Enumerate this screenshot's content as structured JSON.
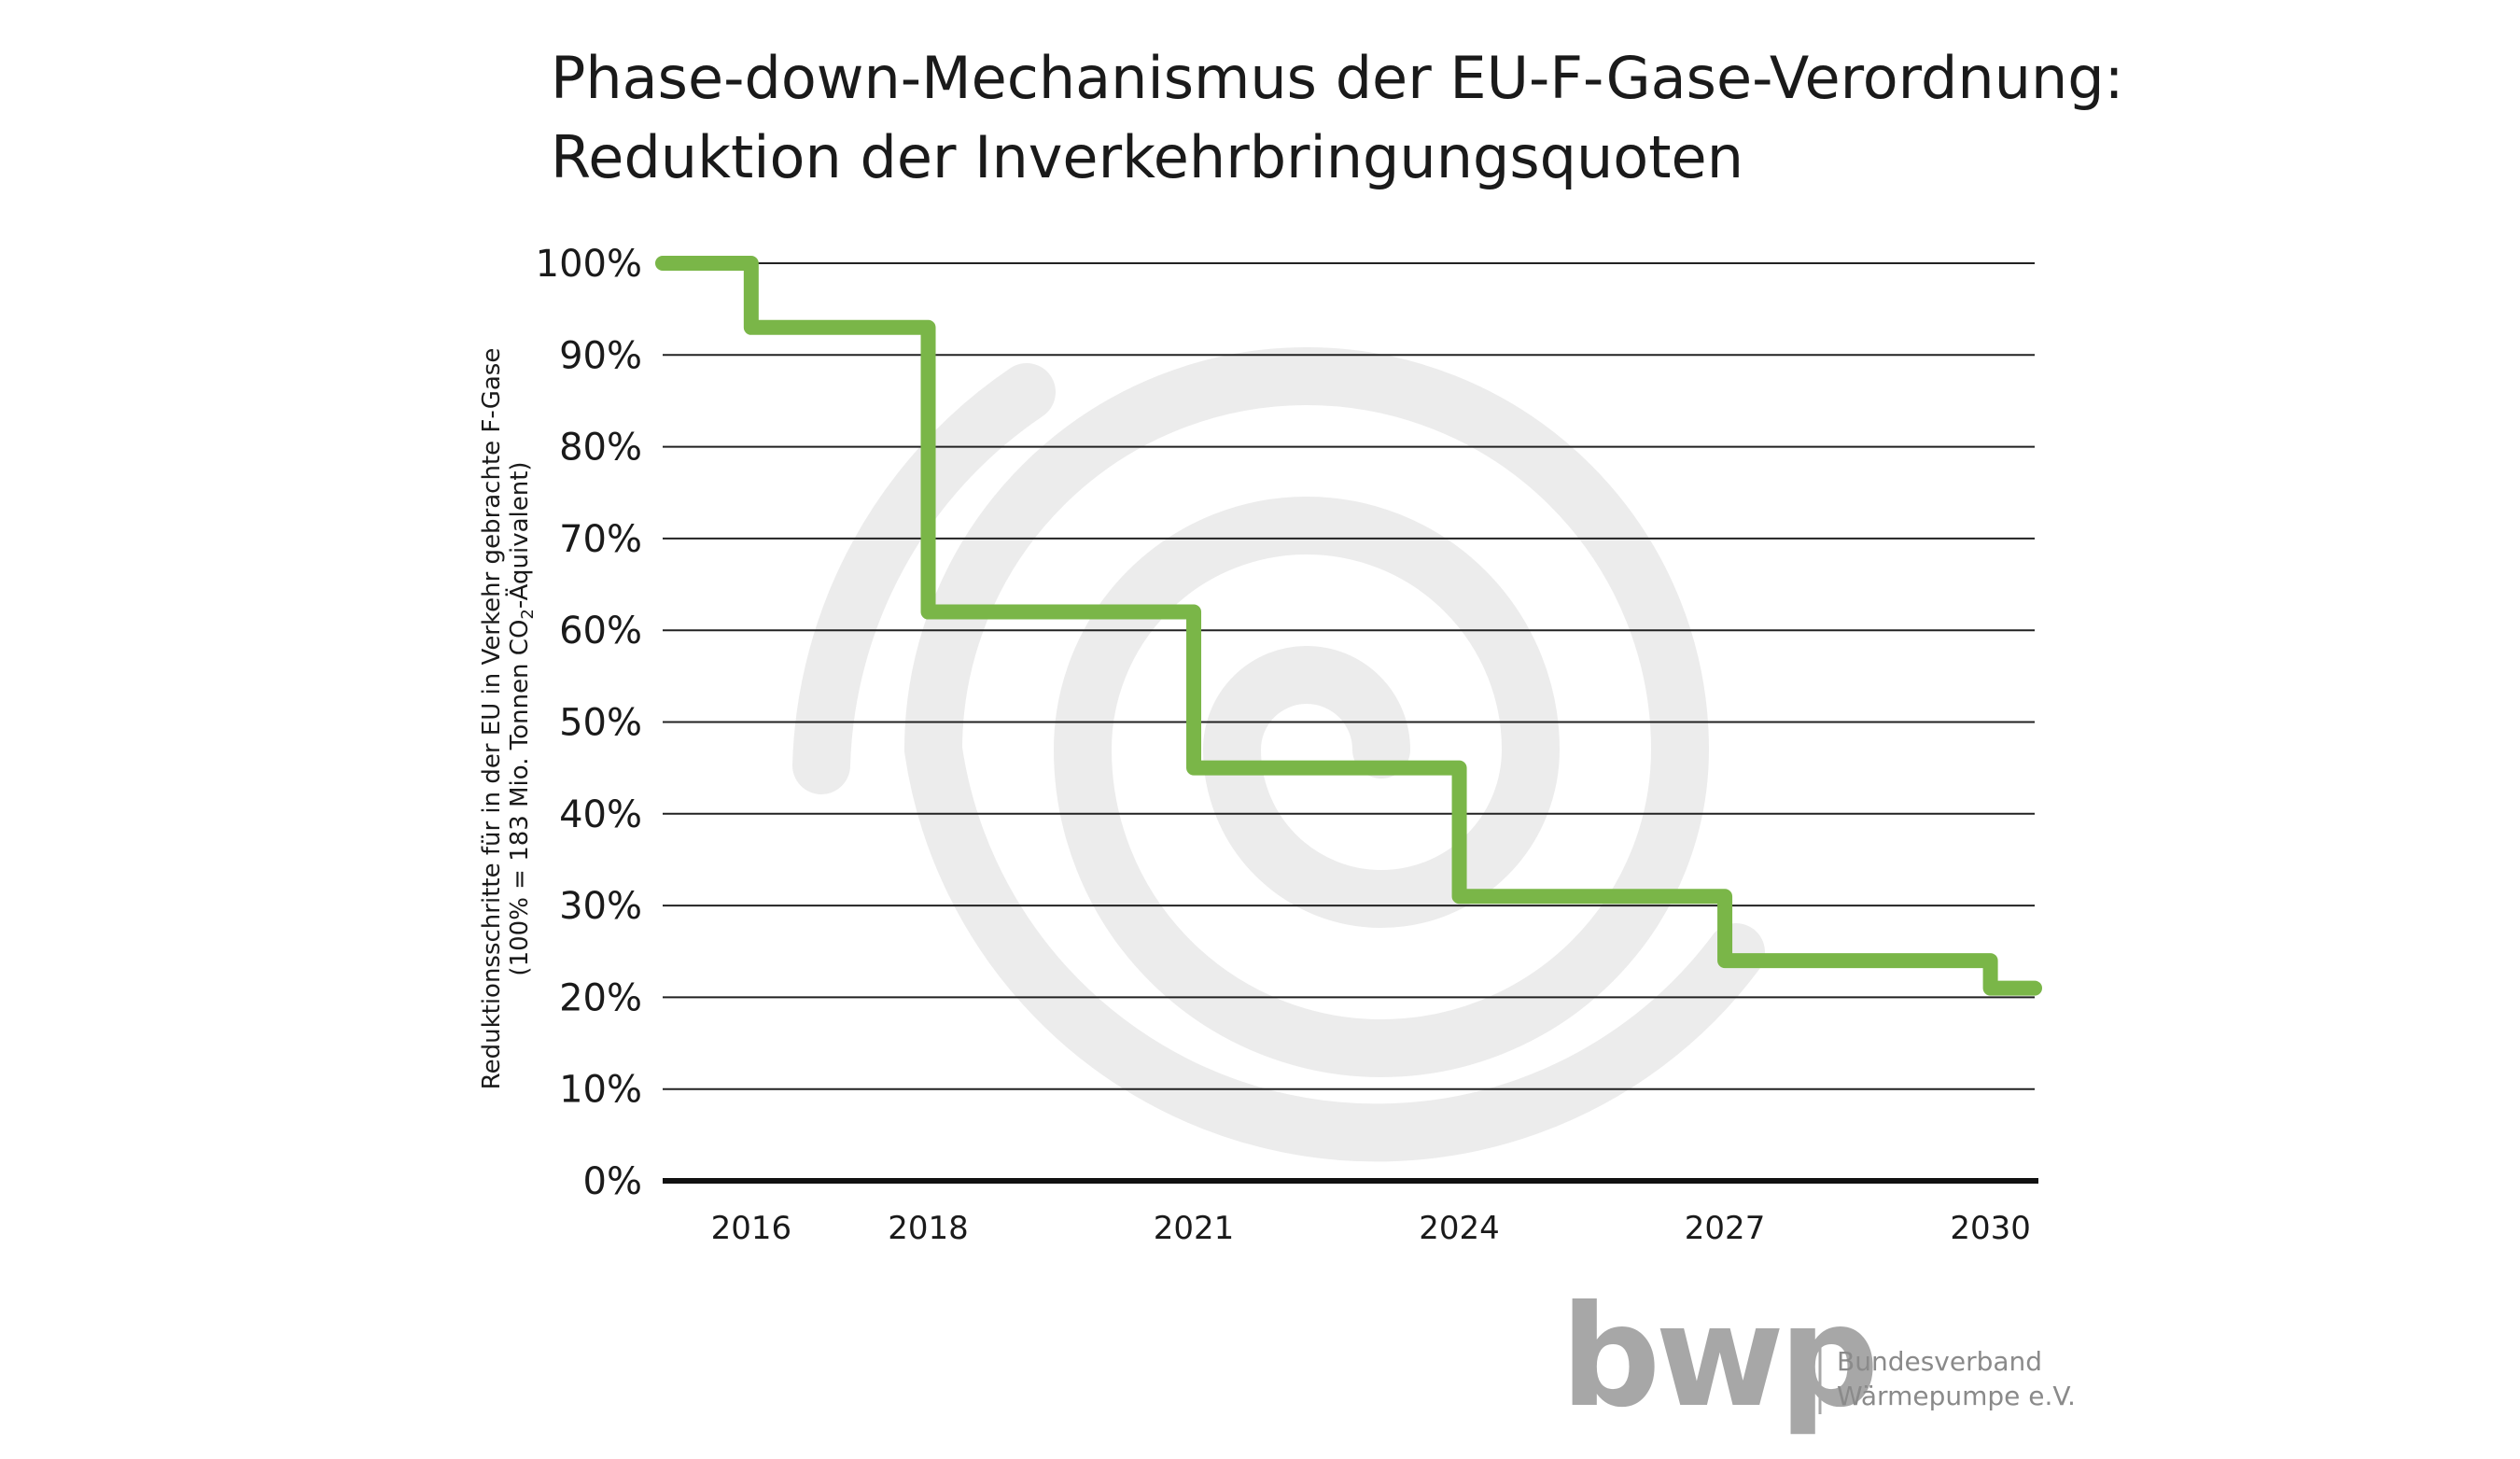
{
  "chart_data": {
    "type": "line",
    "subtype": "step",
    "title": "Phase-down-Mechanismus der EU-F-Gase-Verordnung:",
    "subtitle": "Reduktion der Inverkehrbringungsquoten",
    "ylabel": "Reduktionsschritte für in der EU in Verkehr gebrachte F-Gase",
    "ylabel_sub": {
      "prefix": "(100% = 183 Mio. Tonnen CO",
      "subscript": "2",
      "suffix": "-Äquivalent)"
    },
    "ylim": [
      0,
      100
    ],
    "yticks": [
      0,
      10,
      20,
      30,
      40,
      50,
      60,
      70,
      80,
      90,
      100
    ],
    "ytick_suffix": "%",
    "xlim": [
      2015,
      2030.5
    ],
    "xticks": [
      2016,
      2018,
      2021,
      2024,
      2027,
      2030
    ],
    "grid": true,
    "line_color": "#7ab648",
    "series": [
      {
        "x": [
          2015,
          2016,
          2016,
          2018,
          2018,
          2021,
          2021,
          2024,
          2024,
          2027,
          2027,
          2030,
          2030,
          2030.5
        ],
        "values": [
          100,
          100,
          93,
          93,
          62,
          62,
          45,
          45,
          31,
          31,
          24,
          24,
          21,
          21
        ]
      }
    ]
  },
  "watermark": {
    "icon": "spiral-logo-watermark",
    "color": "#ececec"
  },
  "logo": {
    "wordmark": "bwp",
    "org_line1": "Bundesverband",
    "org_line2": "Wärmepumpe e.V.",
    "color": "#a7a7a7"
  }
}
